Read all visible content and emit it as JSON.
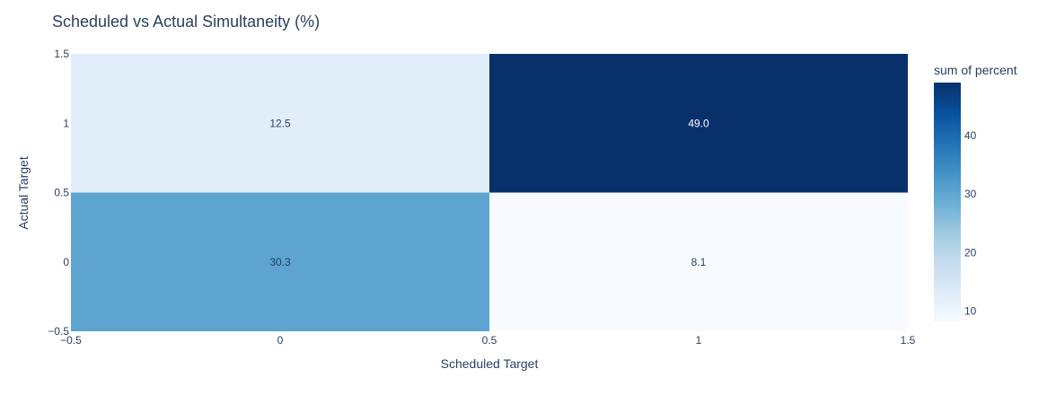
{
  "chart_data": {
    "type": "heatmap",
    "title": "Scheduled vs Actual Simultaneity (%)",
    "xlabel": "Scheduled Target",
    "ylabel": "Actual Target",
    "x": [
      0,
      1
    ],
    "y": [
      0,
      1
    ],
    "xlim": [
      -0.5,
      1.5
    ],
    "ylim": [
      -0.5,
      1.5
    ],
    "x_ticks": [
      "−0.5",
      "0",
      "0.5",
      "1",
      "1.5"
    ],
    "y_ticks": [
      "−0.5",
      "0",
      "0.5",
      "1",
      "1.5"
    ],
    "z": [
      [
        30.3,
        8.1
      ],
      [
        12.5,
        49.0
      ]
    ],
    "z_labels": [
      [
        "30.3",
        "8.1"
      ],
      [
        "12.5",
        "49.0"
      ]
    ],
    "colorscale_name": "Blues",
    "colorbar": {
      "title": "sum of percent",
      "range": [
        8.1,
        49.0
      ],
      "ticks": [
        10,
        20,
        30,
        40
      ]
    }
  }
}
